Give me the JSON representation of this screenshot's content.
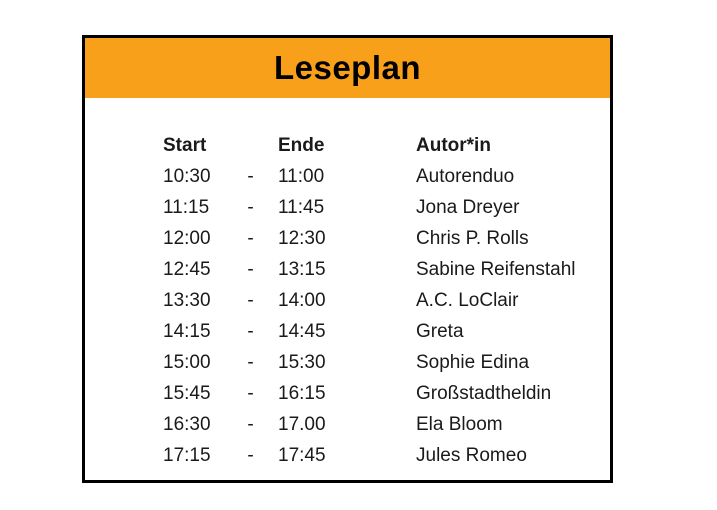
{
  "title": "Leseplan",
  "theme": {
    "banner_bg": "#F9A01B",
    "border_color": "#000000",
    "title_color": "#000000",
    "text_color": "#1a1a1a"
  },
  "table": {
    "headers": {
      "start": "Start",
      "ende": "Ende",
      "autor": "Autor*in"
    },
    "separator": "-",
    "rows": [
      {
        "start": "10:30",
        "ende": "11:00",
        "autor": "Autorenduo"
      },
      {
        "start": "11:15",
        "ende": "11:45",
        "autor": "Jona Dreyer"
      },
      {
        "start": "12:00",
        "ende": "12:30",
        "autor": "Chris P. Rolls"
      },
      {
        "start": "12:45",
        "ende": "13:15",
        "autor": "Sabine Reifenstahl"
      },
      {
        "start": "13:30",
        "ende": "14:00",
        "autor": "A.C. LoClair"
      },
      {
        "start": "14:15",
        "ende": "14:45",
        "autor": "Greta"
      },
      {
        "start": "15:00",
        "ende": "15:30",
        "autor": "Sophie Edina"
      },
      {
        "start": "15:45",
        "ende": "16:15",
        "autor": "Großstadtheldin"
      },
      {
        "start": "16:30",
        "ende": "17.00",
        "autor": "Ela Bloom"
      },
      {
        "start": "17:15",
        "ende": "17:45",
        "autor": "Jules Romeo"
      }
    ]
  }
}
